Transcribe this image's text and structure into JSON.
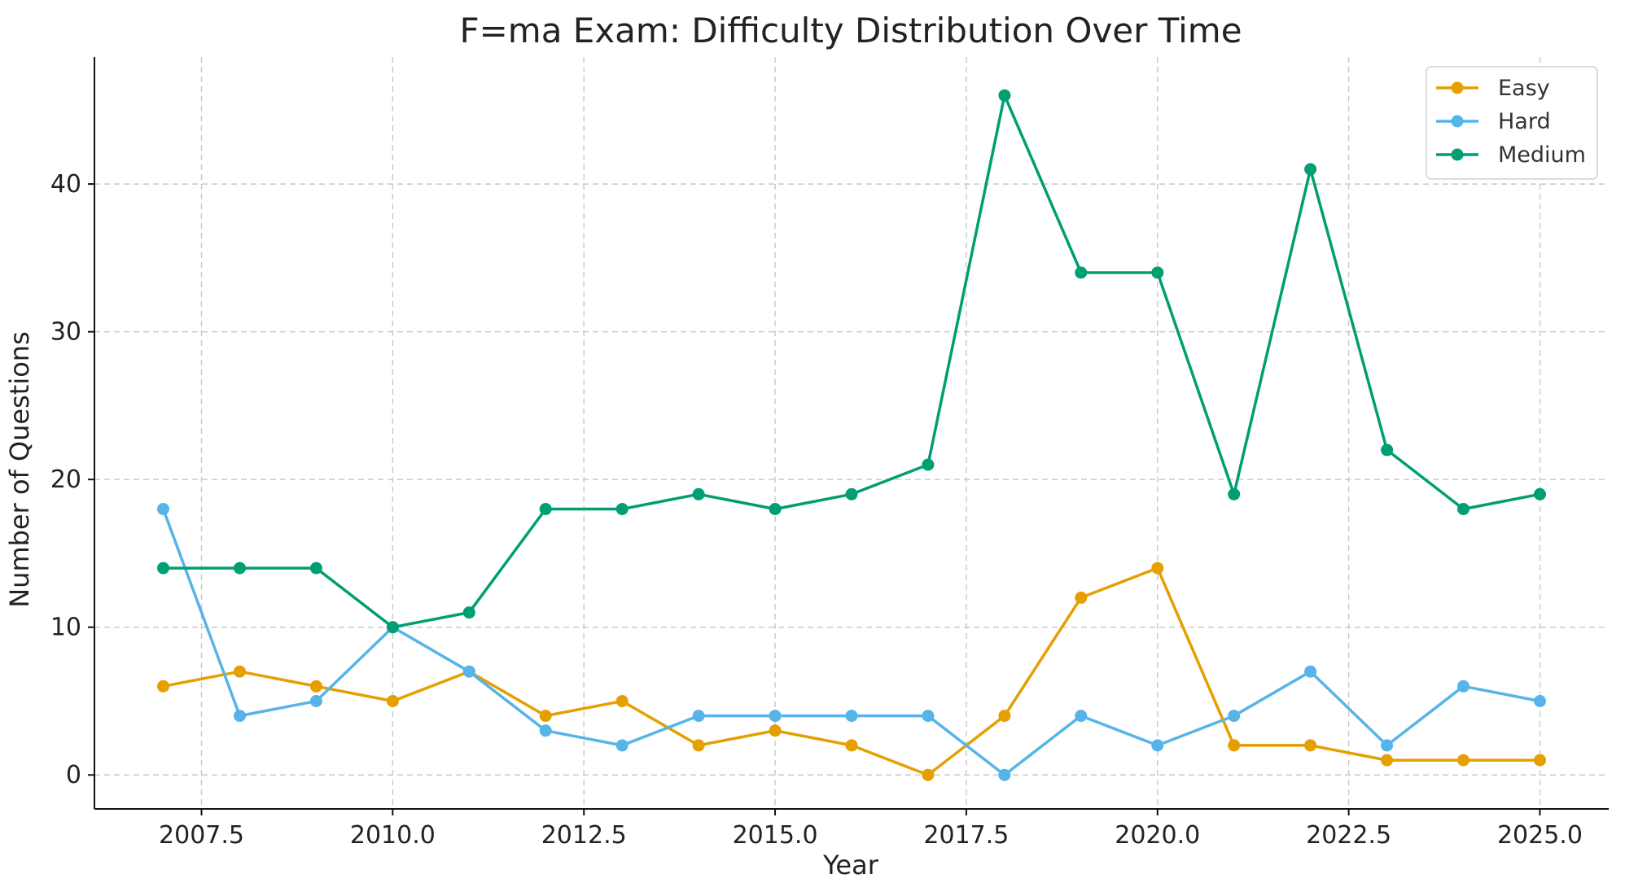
{
  "chart_data": {
    "type": "line",
    "title": "F=ma Exam: Difficulty Distribution Over Time",
    "xlabel": "Year",
    "ylabel": "Number of Questions",
    "x": [
      2007,
      2008,
      2009,
      2010,
      2011,
      2012,
      2013,
      2014,
      2015,
      2016,
      2017,
      2018,
      2019,
      2020,
      2021,
      2022,
      2023,
      2024,
      2025
    ],
    "xlim": [
      2006.1,
      2025.9
    ],
    "ylim": [
      -2.3,
      48.6
    ],
    "x_ticks": [
      2007.5,
      2010.0,
      2012.5,
      2015.0,
      2017.5,
      2020.0,
      2022.5,
      2025.0
    ],
    "x_tick_labels": [
      "2007.5",
      "2010.0",
      "2012.5",
      "2015.0",
      "2017.5",
      "2020.0",
      "2022.5",
      "2025.0"
    ],
    "y_ticks": [
      0,
      10,
      20,
      30,
      40
    ],
    "y_tick_labels": [
      "0",
      "10",
      "20",
      "30",
      "40"
    ],
    "grid": true,
    "legend_position": "top-right",
    "series": [
      {
        "name": "Easy",
        "color": "#E69F00",
        "values": [
          6,
          7,
          6,
          5,
          7,
          4,
          5,
          2,
          3,
          2,
          0,
          4,
          12,
          14,
          2,
          2,
          1,
          1,
          1
        ]
      },
      {
        "name": "Hard",
        "color": "#56B4E9",
        "values": [
          18,
          4,
          5,
          10,
          7,
          3,
          2,
          4,
          4,
          4,
          4,
          0,
          4,
          2,
          4,
          7,
          2,
          6,
          5
        ]
      },
      {
        "name": "Medium",
        "color": "#009E73",
        "values": [
          14,
          14,
          14,
          10,
          11,
          18,
          18,
          19,
          18,
          19,
          21,
          46,
          34,
          34,
          19,
          41,
          22,
          18,
          19
        ]
      }
    ]
  }
}
